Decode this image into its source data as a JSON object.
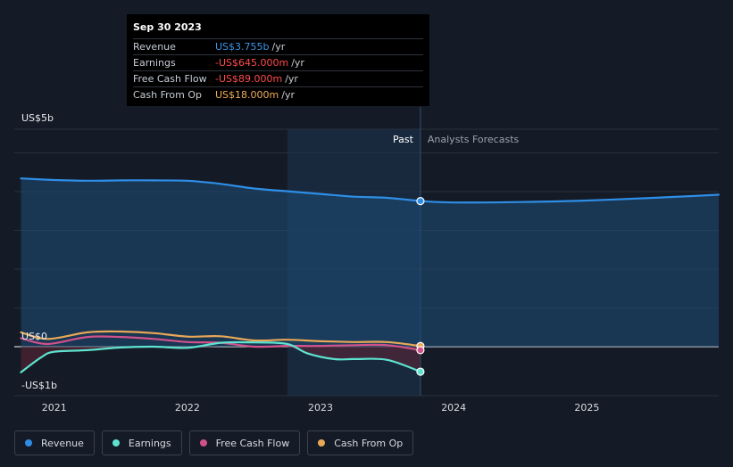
{
  "tooltip": {
    "date": "Sep 30 2023",
    "rows": [
      {
        "label": "Revenue",
        "value": "US$3.755b",
        "unit": "/yr",
        "color": "#3b96e8"
      },
      {
        "label": "Earnings",
        "value": "-US$645.000m",
        "unit": "/yr",
        "color": "#ff4b4b"
      },
      {
        "label": "Free Cash Flow",
        "value": "-US$89.000m",
        "unit": "/yr",
        "color": "#ff4b4b"
      },
      {
        "label": "Cash From Op",
        "value": "US$18.000m",
        "unit": "/yr",
        "color": "#f0ad5a"
      }
    ]
  },
  "legend": [
    {
      "label": "Revenue",
      "color": "#2e8ee6"
    },
    {
      "label": "Earnings",
      "color": "#5ee3cf"
    },
    {
      "label": "Free Cash Flow",
      "color": "#d1528b"
    },
    {
      "label": "Cash From Op",
      "color": "#e8a857"
    }
  ],
  "chart_data": {
    "type": "line",
    "y_tick_labels": [
      "US$5b",
      "US$0",
      "-US$1b"
    ],
    "ylim": [
      -1,
      5
    ],
    "xlim": [
      2020.7,
      2025.99
    ],
    "x_ticks": [
      2021,
      2022,
      2023,
      2024,
      2025
    ],
    "past_label": "Past",
    "forecast_label": "Analysts Forecasts",
    "divider_x": 2023.75,
    "highlight_start_x": 2022.75,
    "grid": true,
    "series": [
      {
        "name": "Revenue",
        "color": "#2e8ee6",
        "points": [
          [
            2020.75,
            4.34
          ],
          [
            2021.0,
            4.3
          ],
          [
            2021.25,
            4.28
          ],
          [
            2021.5,
            4.29
          ],
          [
            2021.75,
            4.29
          ],
          [
            2022.0,
            4.28
          ],
          [
            2022.25,
            4.2
          ],
          [
            2022.5,
            4.08
          ],
          [
            2022.75,
            4.01
          ],
          [
            2023.0,
            3.94
          ],
          [
            2023.25,
            3.87
          ],
          [
            2023.5,
            3.84
          ],
          [
            2023.75,
            3.755
          ]
        ],
        "forecast": [
          [
            2023.75,
            3.755
          ],
          [
            2024.0,
            3.72
          ],
          [
            2024.5,
            3.73
          ],
          [
            2025.0,
            3.77
          ],
          [
            2025.5,
            3.84
          ],
          [
            2025.99,
            3.92
          ]
        ]
      },
      {
        "name": "Earnings",
        "color": "#5ee3cf",
        "points": [
          [
            2020.75,
            -0.66
          ],
          [
            2020.9,
            -0.28
          ],
          [
            2021.0,
            -0.13
          ],
          [
            2021.25,
            -0.09
          ],
          [
            2021.5,
            -0.02
          ],
          [
            2021.75,
            0.0
          ],
          [
            2022.0,
            -0.03
          ],
          [
            2022.25,
            0.1
          ],
          [
            2022.5,
            0.11
          ],
          [
            2022.75,
            0.07
          ],
          [
            2022.9,
            -0.17
          ],
          [
            2023.1,
            -0.32
          ],
          [
            2023.25,
            -0.32
          ],
          [
            2023.5,
            -0.34
          ],
          [
            2023.75,
            -0.645
          ]
        ]
      },
      {
        "name": "Free Cash Flow",
        "color": "#d1528b",
        "points": [
          [
            2020.75,
            0.22
          ],
          [
            2020.95,
            0.07
          ],
          [
            2021.25,
            0.25
          ],
          [
            2021.5,
            0.25
          ],
          [
            2021.75,
            0.2
          ],
          [
            2022.0,
            0.12
          ],
          [
            2022.25,
            0.1
          ],
          [
            2022.5,
            0.0
          ],
          [
            2022.75,
            0.02
          ],
          [
            2023.0,
            0.02
          ],
          [
            2023.25,
            0.04
          ],
          [
            2023.5,
            0.04
          ],
          [
            2023.75,
            -0.089
          ]
        ]
      },
      {
        "name": "Cash From Op",
        "color": "#e8a857",
        "points": [
          [
            2020.75,
            0.37
          ],
          [
            2020.95,
            0.2
          ],
          [
            2021.25,
            0.37
          ],
          [
            2021.5,
            0.39
          ],
          [
            2021.75,
            0.35
          ],
          [
            2022.0,
            0.26
          ],
          [
            2022.25,
            0.27
          ],
          [
            2022.5,
            0.16
          ],
          [
            2022.75,
            0.18
          ],
          [
            2023.0,
            0.14
          ],
          [
            2023.25,
            0.12
          ],
          [
            2023.5,
            0.12
          ],
          [
            2023.75,
            0.018
          ]
        ]
      }
    ]
  }
}
